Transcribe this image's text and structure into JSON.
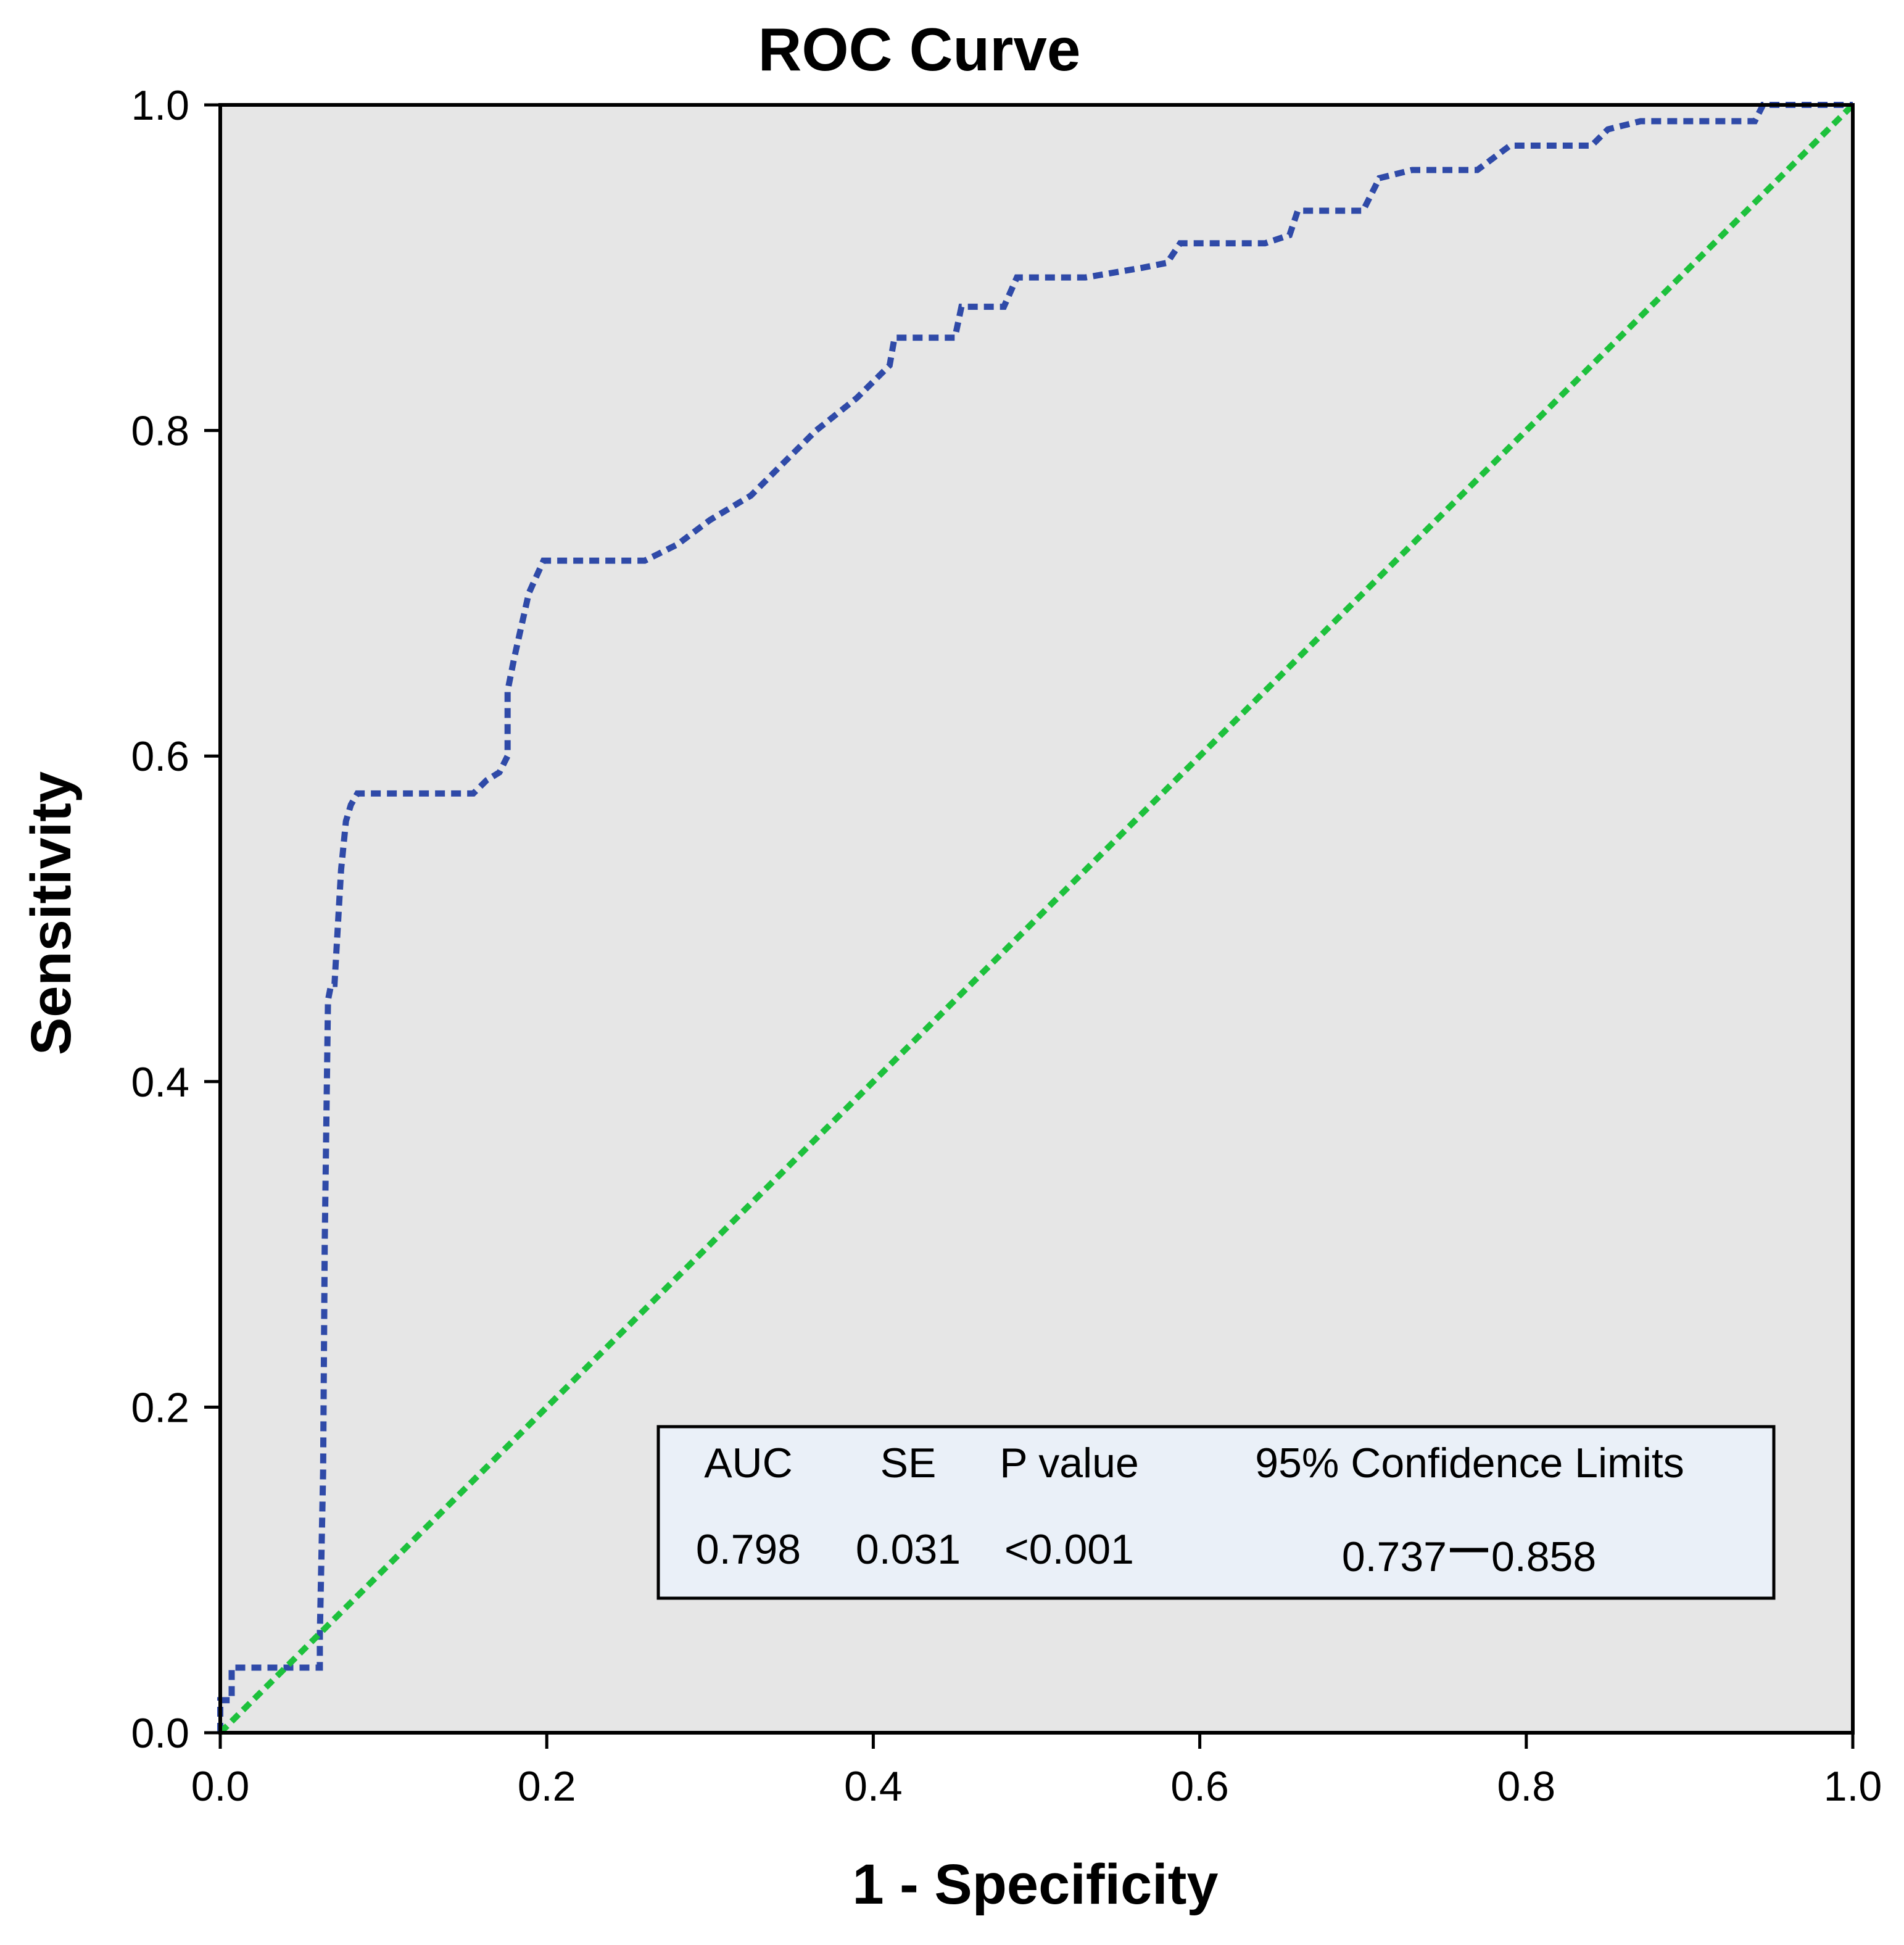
{
  "chart_data": {
    "type": "line",
    "title": "ROC Curve",
    "xlabel": "1 - Specificity",
    "ylabel": "Sensitivity",
    "xlim": [
      0.0,
      1.0
    ],
    "ylim": [
      0.0,
      1.0
    ],
    "x_ticks": [
      "0.0",
      "0.2",
      "0.4",
      "0.6",
      "0.8",
      "1.0"
    ],
    "y_ticks": [
      "0.0",
      "0.2",
      "0.4",
      "0.6",
      "0.8",
      "1.0"
    ],
    "grid": false,
    "plot_background": "#e6e6e6",
    "series": [
      {
        "name": "ROC",
        "color": "#2f4aa8",
        "style": "dotted",
        "x": [
          0.0,
          0.0,
          0.007,
          0.007,
          0.014,
          0.014,
          0.061,
          0.061,
          0.063,
          0.064,
          0.066,
          0.068,
          0.07,
          0.074,
          0.077,
          0.08,
          0.084,
          0.1,
          0.13,
          0.155,
          0.163,
          0.171,
          0.176,
          0.176,
          0.18,
          0.189,
          0.198,
          0.207,
          0.22,
          0.245,
          0.26,
          0.28,
          0.3,
          0.325,
          0.34,
          0.365,
          0.39,
          0.41,
          0.413,
          0.45,
          0.454,
          0.48,
          0.488,
          0.53,
          0.565,
          0.58,
          0.588,
          0.64,
          0.655,
          0.66,
          0.7,
          0.71,
          0.73,
          0.77,
          0.79,
          0.8,
          0.84,
          0.85,
          0.87,
          0.94,
          0.945,
          1.0
        ],
        "y": [
          0.0,
          0.02,
          0.02,
          0.04,
          0.04,
          0.04,
          0.04,
          0.06,
          0.16,
          0.3,
          0.45,
          0.46,
          0.46,
          0.53,
          0.56,
          0.57,
          0.577,
          0.577,
          0.577,
          0.577,
          0.585,
          0.59,
          0.6,
          0.64,
          0.66,
          0.7,
          0.72,
          0.72,
          0.72,
          0.72,
          0.72,
          0.73,
          0.745,
          0.76,
          0.775,
          0.8,
          0.82,
          0.84,
          0.857,
          0.857,
          0.876,
          0.876,
          0.894,
          0.894,
          0.9,
          0.903,
          0.915,
          0.915,
          0.92,
          0.935,
          0.935,
          0.955,
          0.96,
          0.96,
          0.975,
          0.975,
          0.975,
          0.985,
          0.99,
          0.99,
          1.0,
          1.0
        ]
      },
      {
        "name": "Reference line",
        "color": "#1dc13c",
        "style": "dotted",
        "x": [
          0.0,
          1.0
        ],
        "y": [
          0.0,
          1.0
        ]
      }
    ],
    "annotations": {
      "stats_headers": [
        "AUC",
        "SE",
        "P value",
        "95% Confidence Limits"
      ],
      "stats_values": [
        "0.798",
        "0.031",
        "<0.001"
      ],
      "ci_low": "0.737",
      "ci_high": "0.858",
      "box_background": "#eaf0f8"
    }
  }
}
